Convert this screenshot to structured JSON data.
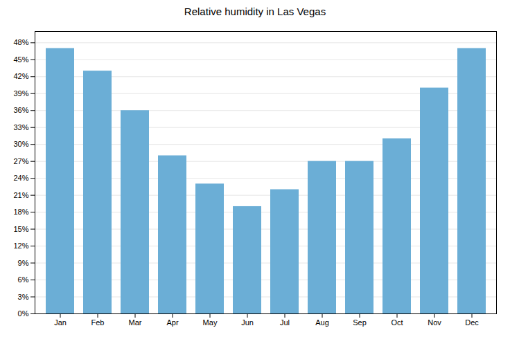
{
  "chart_data": {
    "type": "bar",
    "title": "Relative humidity in Las Vegas",
    "categories": [
      "Jan",
      "Feb",
      "Mar",
      "Apr",
      "May",
      "Jun",
      "Jul",
      "Aug",
      "Sep",
      "Oct",
      "Nov",
      "Dec"
    ],
    "values": [
      47,
      43,
      36,
      28,
      23,
      19,
      22,
      27,
      27,
      31,
      40,
      47
    ],
    "color": "#6BAED6",
    "ylim": [
      0,
      50
    ],
    "yticks": [
      {
        "value": 0,
        "label": "0%"
      },
      {
        "value": 3,
        "label": "3%"
      },
      {
        "value": 6,
        "label": "6%"
      },
      {
        "value": 9,
        "label": "9%"
      },
      {
        "value": 12,
        "label": "12%"
      },
      {
        "value": 15,
        "label": "15%"
      },
      {
        "value": 18,
        "label": "18%"
      },
      {
        "value": 21,
        "label": "21%"
      },
      {
        "value": 24,
        "label": "24%"
      },
      {
        "value": 27,
        "label": "27%"
      },
      {
        "value": 30,
        "label": "30%"
      },
      {
        "value": 33,
        "label": "33%"
      },
      {
        "value": 36,
        "label": "36%"
      },
      {
        "value": 39,
        "label": "39%"
      },
      {
        "value": 42,
        "label": "42%"
      },
      {
        "value": 45,
        "label": "45%"
      },
      {
        "value": 48,
        "label": "48%"
      }
    ],
    "grid": true
  }
}
